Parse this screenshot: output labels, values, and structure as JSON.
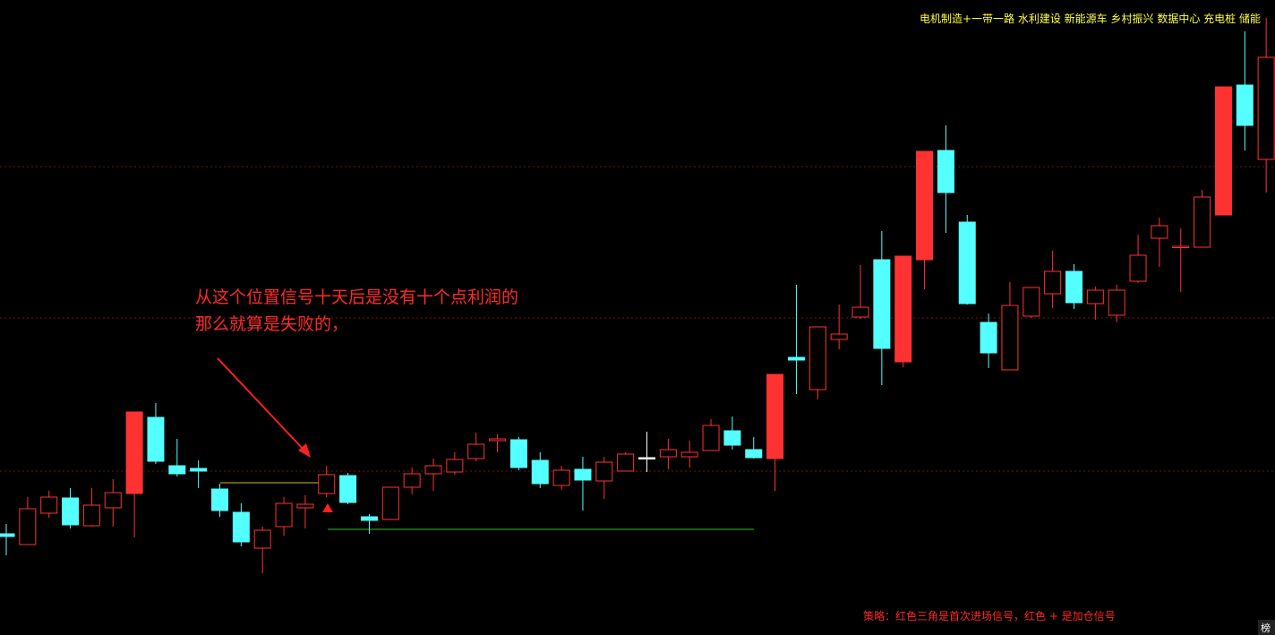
{
  "chart_data": {
    "type": "candlestick",
    "open": [
      11.3,
      10.1,
      13.6,
      15.3,
      12.2,
      14.2,
      15.8,
      24.3,
      18.9,
      18.6,
      16.3,
      13.7,
      9.7,
      12.1,
      14.2,
      15.8,
      17.8,
      13.2,
      12.9,
      16.5,
      18.0,
      18.2,
      19.7,
      21.7,
      21.8,
      19.5,
      16.7,
      18.5,
      17.2,
      18.3,
      19.8,
      19.9,
      19.9,
      20.6,
      22.8,
      20.7,
      19.7,
      31.0,
      27.4,
      33.0,
      35.5,
      41.9,
      30.5,
      41.9,
      54.1,
      46.1,
      34.9,
      29.6,
      35.6,
      38.1,
      40.6,
      37.0,
      35.7,
      39.5,
      44.3,
      43.3,
      43.3,
      46.9,
      61.4,
      53.1
    ],
    "high": [
      12.4,
      15.4,
      16.1,
      16.4,
      16.4,
      17.4,
      24.9,
      25.9,
      21.9,
      19.5,
      16.9,
      14.7,
      12.1,
      15.4,
      15.6,
      18.9,
      18.1,
      13.5,
      16.5,
      18.7,
      19.7,
      20.4,
      22.6,
      22.4,
      22.1,
      20.4,
      18.9,
      19.9,
      19.9,
      20.4,
      22.7,
      21.9,
      21.7,
      24.1,
      24.4,
      22.1,
      29.1,
      39.1,
      34.4,
      36.9,
      41.3,
      45.1,
      42.3,
      54.0,
      56.9,
      46.9,
      35.9,
      39.4,
      38.8,
      42.9,
      41.4,
      38.9,
      39.1,
      44.7,
      46.6,
      45.4,
      49.7,
      61.2,
      67.4,
      68.9
    ],
    "low": [
      8.9,
      10.1,
      13.1,
      11.9,
      12.1,
      12.1,
      10.9,
      19.1,
      17.7,
      16.4,
      13.2,
      9.9,
      6.9,
      11.1,
      11.9,
      15.4,
      14.6,
      11.3,
      12.9,
      15.7,
      16.1,
      17.9,
      19.4,
      20.4,
      18.4,
      16.4,
      16.2,
      13.9,
      15.2,
      18.3,
      18.2,
      18.5,
      18.7,
      20.6,
      20.7,
      19.7,
      16.1,
      26.9,
      26.3,
      31.9,
      35.3,
      27.9,
      29.9,
      38.6,
      44.9,
      36.9,
      29.8,
      29.6,
      35.4,
      36.5,
      36.4,
      35.2,
      34.9,
      39.3,
      41.1,
      38.3,
      43.3,
      46.9,
      54.1,
      49.4
    ],
    "close": [
      11.0,
      14.1,
      15.4,
      12.3,
      14.5,
      15.9,
      24.9,
      19.4,
      18.0,
      18.3,
      13.9,
      10.4,
      11.7,
      14.7,
      14.6,
      17.9,
      14.8,
      12.8,
      16.5,
      18.0,
      18.9,
      19.6,
      21.3,
      21.9,
      18.7,
      16.9,
      18.4,
      17.3,
      19.3,
      20.2,
      19.8,
      20.7,
      20.4,
      23.4,
      21.2,
      19.8,
      29.1,
      30.7,
      34.4,
      33.6,
      36.6,
      32.0,
      42.3,
      54.0,
      49.4,
      37.0,
      31.5,
      36.8,
      38.8,
      40.6,
      37.1,
      38.5,
      38.5,
      42.4,
      45.7,
      43.4,
      48.9,
      61.2,
      56.9,
      64.5
    ],
    "solid": [
      6,
      36,
      42,
      43,
      57
    ],
    "up_color": "#ff3232",
    "down_color": "#54ffff",
    "flat_color": "#ffffff",
    "ylim": [
      0,
      70.9
    ],
    "gridlines": [
      52.3,
      35.4,
      18.3
    ],
    "levels": [
      {
        "color": "#d8b830",
        "value": 17.0
      },
      {
        "color": "#30c030",
        "value": 11.8
      }
    ],
    "annotation": [
      "从这个位置信号十天后是没有十个点利润的",
      "那么就算是失败的，"
    ],
    "sectors": "电机制造+一带一路 水利建设 新能源车 乡村振兴 数据中心 充电桩 储能",
    "strategy_note": "策略：红色三角是首次进场信号，红色 + 是加仓信号",
    "badge": "榜"
  }
}
